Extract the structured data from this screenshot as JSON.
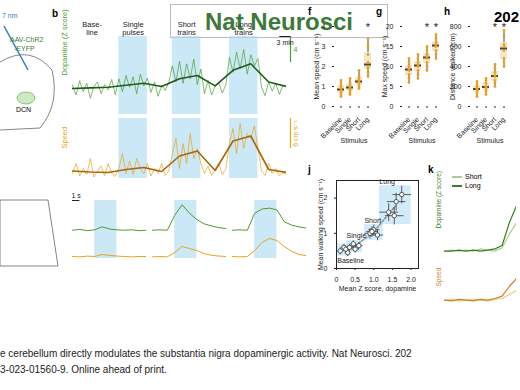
{
  "header": {
    "title": "Nat Neurosci",
    "corner": "202"
  },
  "schematic": {
    "light": "7 nm",
    "virus": [
      "AAV-ChR2",
      "-EYFP"
    ],
    "region": "DCN"
  },
  "chart_data": [
    {
      "panel": "b",
      "type": "line",
      "tick_labels": false,
      "xlim": [
        0,
        60
      ],
      "x": [
        0,
        1,
        2,
        3,
        4,
        5,
        6,
        7,
        8,
        9,
        10,
        11,
        12,
        13,
        14,
        15,
        16,
        17,
        18,
        19,
        20,
        21,
        22,
        23,
        24,
        25,
        26,
        27,
        28,
        29,
        30,
        31,
        32,
        33,
        34,
        35,
        36,
        37,
        38,
        39,
        40,
        41,
        42,
        43,
        44,
        45,
        46,
        47,
        48,
        49,
        50,
        51,
        52,
        53,
        54,
        55,
        56,
        57,
        58,
        59,
        60
      ],
      "periods": [
        {
          "label": "Base-\nline",
          "start": 1,
          "end": 10
        },
        {
          "label": "Single\npulses",
          "start": 13,
          "end": 21,
          "color": "#a9d9f2"
        },
        {
          "label": "Short\ntrains",
          "start": 28,
          "end": 36,
          "color": "#a9d9f2"
        },
        {
          "label": "Long\ntrains",
          "start": 44,
          "end": 52,
          "color": "#a9d9f2"
        }
      ],
      "series": [
        {
          "name": "Dopamine (Z score)",
          "color": "#4a9e2f",
          "ylim": [
            -4,
            8
          ],
          "values": [
            0.5,
            -1,
            1.2,
            -0.5,
            0.8,
            -1.5,
            0.3,
            1.0,
            -0.8,
            0.6,
            -0.2,
            1.4,
            -1.0,
            1.5,
            -0.5,
            2.0,
            0.2,
            1.8,
            -0.8,
            2.2,
            0.4,
            1.6,
            -0.6,
            1.0,
            -1.2,
            0.5,
            -0.3,
            0.9,
            3.5,
            1.0,
            4.2,
            0.8,
            3.8,
            1.5,
            4.5,
            0.6,
            3.0,
            -0.8,
            1.2,
            -1.0,
            0.4,
            0.9,
            -0.7,
            0.6,
            4.8,
            2.5,
            5.6,
            3.0,
            6.0,
            2.2,
            5.2,
            3.5,
            4.6,
            0.2,
            -1.1,
            1.0,
            -0.4,
            0.8,
            -0.9,
            0.5,
            0.3
          ],
          "trend": {
            "x": [
              0,
              5,
              10,
              15,
              20,
              25,
              30,
              35,
              40,
              45,
              50,
              55,
              60
            ],
            "values": [
              0,
              0.1,
              0.2,
              0.5,
              0.8,
              0.3,
              1.5,
              2.0,
              0.4,
              2.8,
              3.8,
              1.0,
              0.3
            ],
            "color": "#1f5c1a"
          }
        },
        {
          "name": "Speed",
          "color": "#e9a21c",
          "ylim": [
            0,
            12
          ],
          "values": [
            1,
            3,
            0.5,
            2,
            0.8,
            4,
            0.3,
            1.5,
            2.5,
            0.6,
            3,
            1,
            0.4,
            2,
            5,
            1,
            3.5,
            0.8,
            4,
            2,
            1,
            3,
            0.5,
            2,
            1,
            3,
            0.6,
            1.5,
            5,
            8,
            2,
            7,
            3,
            9,
            4,
            6,
            3,
            1,
            2.5,
            0.6,
            1.8,
            3,
            0.8,
            2,
            7,
            10,
            5,
            11,
            6,
            9,
            8,
            10.5,
            6,
            1.5,
            0.6,
            3,
            1,
            2,
            0.5,
            1.2,
            0.8
          ],
          "trend": {
            "x": [
              0,
              5,
              10,
              15,
              20,
              25,
              30,
              35,
              40,
              45,
              50,
              55,
              60
            ],
            "values": [
              1.5,
              1.3,
              1.2,
              1.8,
              2.2,
              1.4,
              4.5,
              5.5,
              1.6,
              7.5,
              8.5,
              1.8,
              1.2
            ],
            "color": "#a8650a"
          }
        }
      ],
      "scale_bars": [
        {
          "label": "4",
          "value": 4,
          "axis": "Dopamine (Z score)"
        },
        {
          "label": "6 cm s⁻¹",
          "value": 6,
          "axis": "Speed"
        },
        {
          "label": "3 min",
          "value": 3,
          "axis": "x"
        }
      ],
      "zoom": {
        "xlim": [
          0,
          10
        ],
        "x": [
          0,
          1,
          2,
          3,
          4,
          5,
          6,
          7,
          8,
          9,
          10
        ],
        "ylim": [
          -1,
          7
        ],
        "y2lim": [
          0,
          6
        ],
        "color": "#a9d9f2",
        "scale_bars": [
          {
            "label": "1 s",
            "value": 1,
            "axis": "x"
          }
        ],
        "panels": [
          {
            "stim": [
              3,
              6
            ],
            "dopamine": [
              0,
              0.2,
              -0.1,
              0.1,
              0.8,
              0.3,
              0.1,
              0,
              0.1,
              -0.1,
              0
            ],
            "speed": [
              0.5,
              0.4,
              0.6,
              0.5,
              1,
              0.8,
              0.6,
              0.5,
              0.4,
              0.5,
              0.5
            ]
          },
          {
            "stim": [
              3,
              6
            ],
            "dopamine": [
              0,
              0.1,
              0,
              3.5,
              6,
              4,
              2.5,
              1.5,
              1,
              0.6,
              0.4
            ],
            "speed": [
              0.4,
              0.5,
              0.4,
              1.5,
              3,
              2.5,
              2,
              1.2,
              0.8,
              0.6,
              0.5
            ]
          },
          {
            "stim": [
              3,
              6
            ],
            "dopamine": [
              0,
              0.1,
              0,
              4,
              5,
              5.2,
              4.8,
              2,
              1.2,
              0.8,
              0.5
            ],
            "speed": [
              0.5,
              0.4,
              0.5,
              2,
              4,
              5,
              4.5,
              3,
              1.8,
              1,
              0.7
            ]
          }
        ]
      }
    },
    {
      "panel": "f",
      "type": "box",
      "categories": [
        "Baseline",
        "Single",
        "Short",
        "Long"
      ],
      "x_label": "Stimulus",
      "y_label": "Mean speed (cm s⁻¹)",
      "ylim": [
        0,
        4
      ],
      "yticks": [
        0,
        1,
        2,
        3,
        4
      ],
      "color": "#e9a21c",
      "values": [
        [
          0.5,
          0.7,
          0.9,
          1.0,
          1.1,
          1.3,
          0.6,
          0.8
        ],
        [
          0.6,
          0.8,
          1.0,
          1.2,
          0.9,
          1.4,
          0.7,
          1.1
        ],
        [
          0.9,
          1.1,
          1.3,
          1.5,
          1.2,
          1.8,
          1.0,
          1.4
        ],
        [
          1.5,
          1.9,
          2.2,
          2.6,
          3.0,
          2.0,
          3.4,
          1.7
        ]
      ],
      "annotations": [
        {
          "text": "*",
          "category": "Long"
        }
      ]
    },
    {
      "panel": "g",
      "type": "box",
      "categories": [
        "Baseline",
        "Single",
        "Short",
        "Long"
      ],
      "x_label": "Stimulus",
      "y_label": "Max speed (cm s⁻¹)",
      "ylim": [
        0,
        20
      ],
      "yticks": [
        0,
        5,
        10,
        15,
        20
      ],
      "color": "#e9a21c",
      "values": [
        [
          6,
          8,
          9,
          10,
          11,
          12,
          7,
          9.5
        ],
        [
          7,
          9,
          10,
          11,
          12,
          13,
          8,
          10.5
        ],
        [
          9,
          11,
          12,
          13,
          14,
          15,
          10,
          12.5
        ],
        [
          12,
          14,
          15,
          16,
          17,
          18,
          13,
          15.5
        ]
      ],
      "annotations": [
        {
          "text": "*",
          "category": "Short"
        },
        {
          "text": "*",
          "category": "Long"
        }
      ]
    },
    {
      "panel": "h",
      "type": "box",
      "categories": [
        "Baseline",
        "Single",
        "Short",
        "Long"
      ],
      "x_label": "Stimulus",
      "y_label": "Distance walked (cm)",
      "ylim": [
        0,
        800
      ],
      "yticks": [
        0,
        200,
        400,
        600,
        800
      ],
      "color": "#e9a21c",
      "values": [
        [
          100,
          150,
          180,
          200,
          220,
          250,
          130,
          170
        ],
        [
          120,
          170,
          200,
          230,
          260,
          280,
          150,
          190
        ],
        [
          200,
          260,
          300,
          340,
          380,
          420,
          240,
          310
        ],
        [
          400,
          480,
          560,
          620,
          700,
          760,
          450,
          600
        ]
      ],
      "annotations": [
        {
          "text": "*",
          "category": "Short"
        },
        {
          "text": "*",
          "category": "Long"
        }
      ]
    },
    {
      "panel": "j",
      "type": "scatter",
      "x_label": "Mean Z score, dopamine",
      "y_label": "Mean walking speed (cm s⁻¹)",
      "xlim": [
        0,
        2.2
      ],
      "xticks": [
        0,
        0.5,
        {
          "value": 1,
          "label": "1.0"
        },
        1.5,
        {
          "value": 2,
          "label": "2.0"
        }
      ],
      "ylim": [
        0,
        2.5
      ],
      "yticks": [
        0,
        1,
        2
      ],
      "color": "#bfe3f5",
      "series": [
        {
          "name": "Baseline",
          "x": [
            0.1,
            0.2,
            0.3,
            0.25
          ],
          "y": [
            0.5,
            0.6,
            0.45,
            0.55
          ],
          "x_err": [
            0.08,
            0.08,
            0.08,
            0.08
          ],
          "y_err": [
            0.1,
            0.1,
            0.1,
            0.1
          ]
        },
        {
          "name": "Single",
          "x": [
            0.35,
            0.5,
            0.45,
            0.6
          ],
          "y": [
            0.6,
            0.55,
            0.7,
            0.65
          ],
          "x_err": [
            0.08,
            0.1,
            0.08,
            0.1
          ],
          "y_err": [
            0.1,
            0.1,
            0.1,
            0.1
          ]
        },
        {
          "name": "Short",
          "x": [
            0.9,
            1.0,
            1.1,
            0.95
          ],
          "y": [
            1.0,
            1.1,
            0.95,
            1.05
          ],
          "x_err": [
            0.15,
            0.15,
            0.15,
            0.15
          ],
          "y_err": [
            0.15,
            0.15,
            0.15,
            0.15
          ]
        },
        {
          "name": "Long",
          "x": [
            1.4,
            1.6,
            1.75,
            1.55
          ],
          "y": [
            1.6,
            1.9,
            2.1,
            1.5
          ],
          "x_err": [
            0.25,
            0.25,
            0.25,
            0.25
          ],
          "y_err": [
            0.25,
            0.25,
            0.25,
            0.25
          ]
        }
      ]
    },
    {
      "panel": "k",
      "type": "line",
      "tick_labels": false,
      "legend": "top",
      "xlim": [
        0,
        10
      ],
      "x": [
        0,
        1,
        2,
        3,
        4,
        5,
        6,
        7,
        8,
        9,
        10
      ],
      "panels": [
        {
          "y_label": "Dopamine (Z score)",
          "ylim": [
            -1,
            5
          ],
          "series": [
            {
              "name": "Short",
              "color": "#a8d08d",
              "values": [
                0,
                0.1,
                0,
                0.1,
                0,
                0.2,
                0.1,
                0,
                0.3,
                1.5,
                2.5
              ]
            },
            {
              "name": "Long",
              "color": "#3b7d23",
              "values": [
                0,
                0,
                0.1,
                0,
                0.1,
                0,
                0.1,
                0.2,
                0.5,
                2.5,
                4
              ]
            }
          ]
        },
        {
          "y_label": "Speed",
          "ylim": [
            0,
            5
          ],
          "series": [
            {
              "name": "Short",
              "color": "#f0c987",
              "values": [
                0.8,
                0.9,
                0.7,
                0.8,
                0.9,
                0.8,
                0.7,
                0.9,
                1,
                1.5,
                2
              ]
            },
            {
              "name": "Long",
              "color": "#c9821a",
              "values": [
                0.8,
                0.7,
                0.9,
                0.8,
                0.7,
                0.9,
                0.8,
                1,
                1.3,
                2.5,
                3.5
              ]
            }
          ]
        }
      ]
    }
  ],
  "caption": [
    "e cerebellum directly modulates the substantia nigra dopaminergic activity. Nat Neurosci. 202",
    "3-023-01560-9. Online ahead of print."
  ]
}
